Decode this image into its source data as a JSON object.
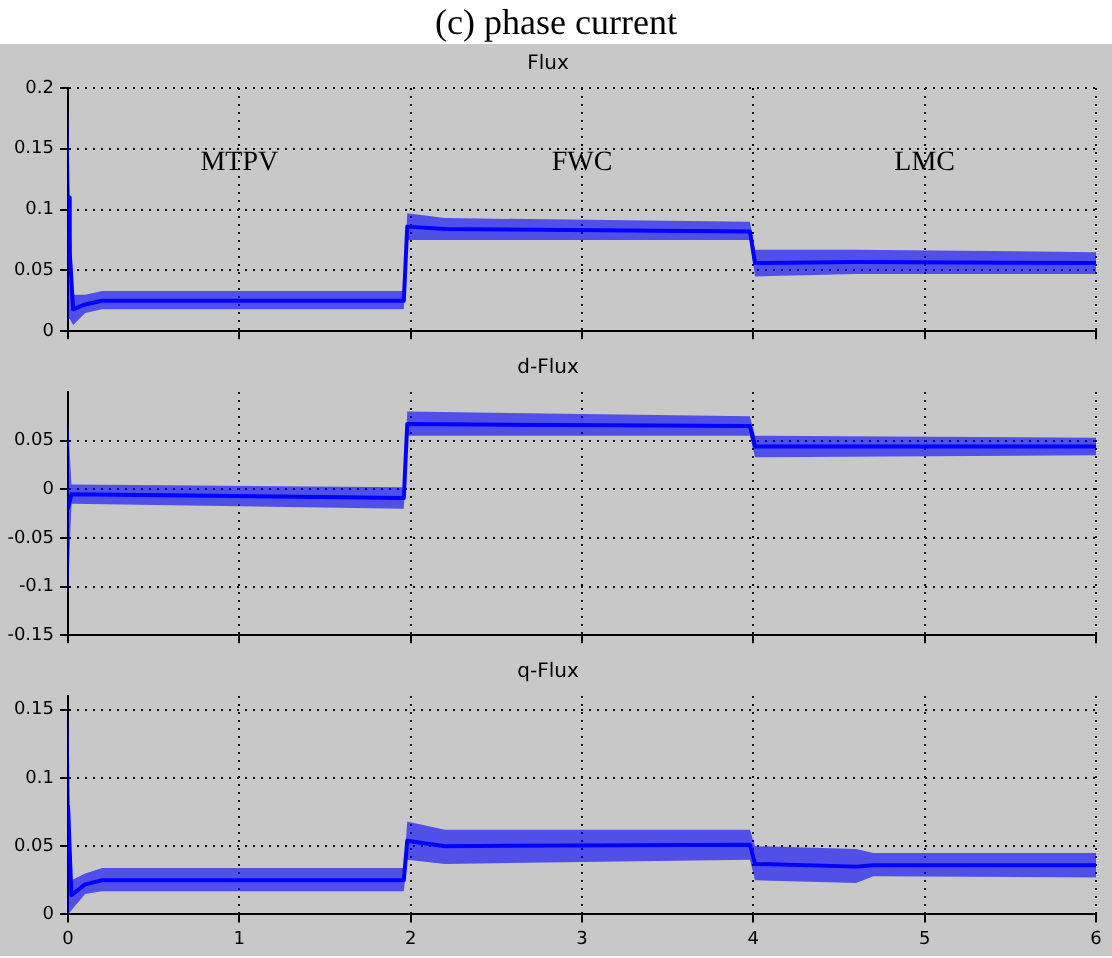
{
  "chart_data": [
    {
      "type": "line",
      "title": "Flux",
      "annotations": [
        "(c) phase current",
        "MTPV",
        "FWC",
        "LMC"
      ],
      "x": [
        0,
        0.01,
        0.03,
        0.1,
        0.2,
        1.96,
        1.98,
        2.2,
        3.98,
        4.01,
        4.6,
        6
      ],
      "series": [
        {
          "color": "#0000ff",
          "values": [
            0.11,
            0.065,
            0.018,
            0.022,
            0.025,
            0.025,
            0.086,
            0.084,
            0.082,
            0.056,
            0.057,
            0.056
          ],
          "lower": [
            0.03,
            0.01,
            0.005,
            0.015,
            0.018,
            0.018,
            0.075,
            0.075,
            0.075,
            0.045,
            0.047,
            0.047
          ],
          "upper": [
            0.19,
            0.12,
            0.03,
            0.03,
            0.033,
            0.033,
            0.097,
            0.093,
            0.09,
            0.067,
            0.067,
            0.065
          ]
        }
      ],
      "xlim": [
        0,
        6
      ],
      "xticks": [
        0,
        1,
        2,
        3,
        4,
        5,
        6
      ],
      "ylim": [
        0,
        0.2
      ],
      "yticks": [
        0,
        0.05,
        0.1,
        0.15,
        0.2
      ],
      "grid": true,
      "line_style": "solid",
      "tick_labels": "y"
    },
    {
      "type": "line",
      "title": "d-Flux",
      "x": [
        0,
        0.02,
        1.96,
        1.98,
        3.98,
        4.01,
        6
      ],
      "series": [
        {
          "color": "#0000ff",
          "values": [
            -0.02,
            -0.005,
            -0.009,
            0.067,
            0.065,
            0.044,
            0.044
          ],
          "lower": [
            -0.11,
            -0.015,
            -0.02,
            0.055,
            0.055,
            0.033,
            0.035
          ],
          "upper": [
            0.07,
            0.005,
            0.002,
            0.08,
            0.075,
            0.055,
            0.053
          ]
        }
      ],
      "xlim": [
        0,
        6
      ],
      "xticks": [
        0,
        1,
        2,
        3,
        4,
        5,
        6
      ],
      "ylim": [
        -0.15,
        0.1
      ],
      "yticks": [
        -0.15,
        -0.1,
        -0.05,
        0,
        0.05
      ],
      "grid": true,
      "line_style": "solid",
      "tick_labels": "y"
    },
    {
      "type": "line",
      "title": "q-Flux",
      "x": [
        0,
        0.02,
        0.1,
        0.2,
        1.96,
        1.98,
        2.2,
        3.98,
        4.01,
        4.6,
        4.7,
        6
      ],
      "series": [
        {
          "color": "#0000ff",
          "values": [
            0.08,
            0.014,
            0.022,
            0.025,
            0.025,
            0.054,
            0.05,
            0.051,
            0.037,
            0.035,
            0.036,
            0.036
          ],
          "lower": [
            0,
            0.003,
            0.015,
            0.017,
            0.017,
            0.04,
            0.037,
            0.04,
            0.025,
            0.023,
            0.028,
            0.027
          ],
          "upper": [
            0.155,
            0.025,
            0.03,
            0.034,
            0.034,
            0.068,
            0.062,
            0.062,
            0.05,
            0.048,
            0.045,
            0.045
          ]
        }
      ],
      "xlim": [
        0,
        6
      ],
      "xticks": [
        0,
        1,
        2,
        3,
        4,
        5,
        6
      ],
      "ylim": [
        0,
        0.16
      ],
      "yticks": [
        0,
        0.05,
        0.1,
        0.15
      ],
      "grid": true,
      "line_style": "solid"
    }
  ]
}
